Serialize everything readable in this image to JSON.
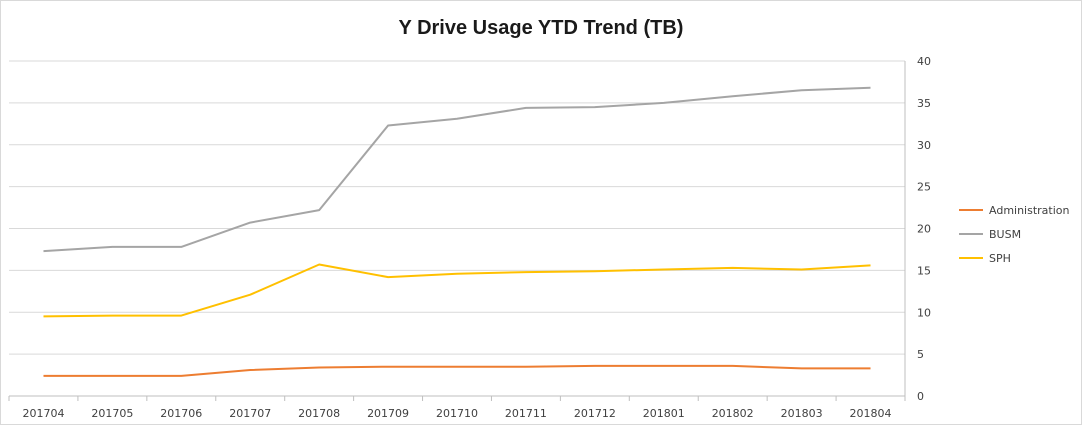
{
  "chart_data": {
    "type": "line",
    "title": "Y Drive Usage YTD Trend (TB)",
    "xlabel": "",
    "ylabel": "",
    "categories": [
      "201704",
      "201705",
      "201706",
      "201707",
      "201708",
      "201709",
      "201710",
      "201711",
      "201712",
      "201801",
      "201802",
      "201803",
      "201804"
    ],
    "ylim": [
      0,
      40
    ],
    "yticks": [
      0,
      5,
      10,
      15,
      20,
      25,
      30,
      35,
      40
    ],
    "y_axis_side": "right",
    "grid": true,
    "legend_position": "right",
    "series": [
      {
        "name": "Administration",
        "color": "#ED7D31",
        "values": [
          2.4,
          2.4,
          2.4,
          3.1,
          3.4,
          3.5,
          3.5,
          3.5,
          3.6,
          3.6,
          3.6,
          3.3,
          3.3
        ]
      },
      {
        "name": "BUSM",
        "color": "#A5A5A5",
        "values": [
          17.3,
          17.8,
          17.8,
          20.7,
          22.2,
          32.3,
          33.1,
          34.4,
          34.5,
          35.0,
          35.8,
          36.5,
          36.8
        ]
      },
      {
        "name": "SPH",
        "color": "#FFC000",
        "values": [
          9.5,
          9.6,
          9.6,
          12.1,
          15.7,
          14.2,
          14.6,
          14.8,
          14.9,
          15.1,
          15.3,
          15.1,
          15.6
        ]
      }
    ]
  }
}
